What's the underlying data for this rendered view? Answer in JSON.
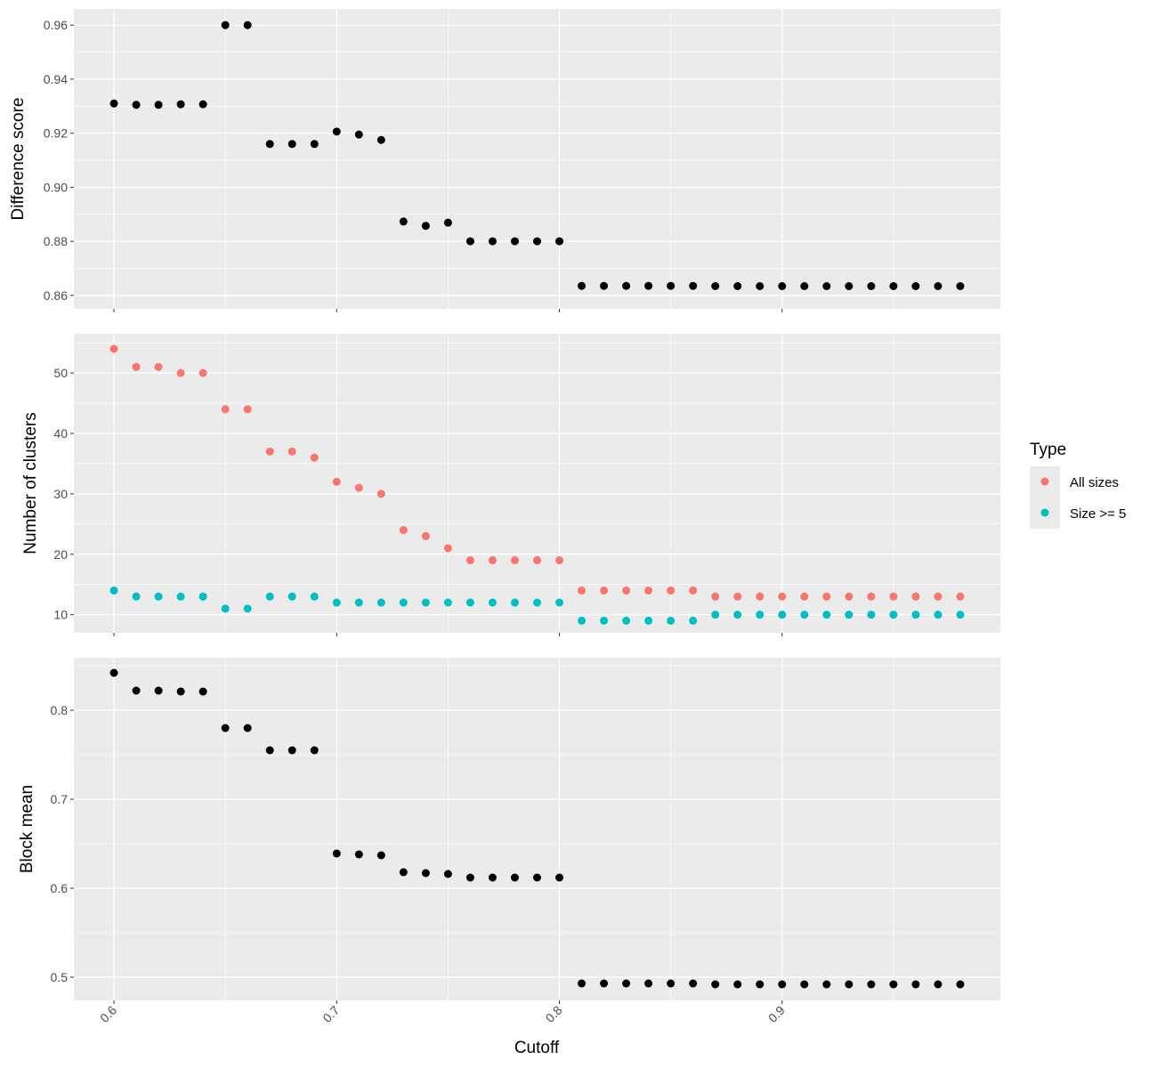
{
  "chart_data": {
    "type": "scatter",
    "xlabel": "Cutoff",
    "xlim": [
      0.582,
      0.998
    ],
    "x_ticks": [
      "0.6",
      "0.7",
      "0.8",
      "0.9"
    ],
    "x_tick_values": [
      0.6,
      0.7,
      0.8,
      0.9
    ],
    "x": [
      0.6,
      0.61,
      0.62,
      0.63,
      0.64,
      0.65,
      0.66,
      0.67,
      0.68,
      0.69,
      0.7,
      0.71,
      0.72,
      0.73,
      0.74,
      0.75,
      0.76,
      0.77,
      0.78,
      0.79,
      0.8,
      0.81,
      0.82,
      0.83,
      0.84,
      0.85,
      0.86,
      0.87,
      0.88,
      0.89,
      0.9,
      0.91,
      0.92,
      0.93,
      0.94,
      0.95,
      0.96,
      0.97,
      0.98
    ],
    "grid": true,
    "panels": [
      {
        "ylabel": "Difference score",
        "ylim": [
          0.855,
          0.966
        ],
        "y_ticks": [
          "0.86",
          "0.88",
          "0.90",
          "0.92",
          "0.94",
          "0.96"
        ],
        "y_tick_values": [
          0.86,
          0.88,
          0.9,
          0.92,
          0.94,
          0.96
        ],
        "series": [
          {
            "color": "#000000",
            "values": [
              0.931,
              0.9305,
              0.9305,
              0.9307,
              0.9307,
              0.96,
              0.96,
              0.916,
              0.916,
              0.916,
              0.9206,
              0.9195,
              0.9175,
              0.8873,
              0.8857,
              0.8869,
              0.88,
              0.88,
              0.88,
              0.88,
              0.88,
              0.8635,
              0.8635,
              0.8635,
              0.8635,
              0.8635,
              0.8635,
              0.8634,
              0.8634,
              0.8634,
              0.8634,
              0.8634,
              0.8634,
              0.8634,
              0.8634,
              0.8634,
              0.8634,
              0.8634,
              0.8634
            ]
          }
        ]
      },
      {
        "ylabel": "Number of clusters",
        "ylim": [
          7.0,
          56.5
        ],
        "y_ticks": [
          "10",
          "20",
          "30",
          "40",
          "50"
        ],
        "y_tick_values": [
          10,
          20,
          30,
          40,
          50
        ],
        "series": [
          {
            "name": "All sizes",
            "color": "#F8766D",
            "values": [
              54,
              51,
              51,
              50,
              50,
              44,
              44,
              37,
              37,
              36,
              32,
              31,
              30,
              24,
              23,
              21,
              19,
              19,
              19,
              19,
              19,
              14,
              14,
              14,
              14,
              14,
              14,
              13,
              13,
              13,
              13,
              13,
              13,
              13,
              13,
              13,
              13,
              13,
              13
            ]
          },
          {
            "name": "Size >= 5",
            "color": "#00BFC4",
            "values": [
              14,
              13,
              13,
              13,
              13,
              11,
              11,
              13,
              13,
              13,
              12,
              12,
              12,
              12,
              12,
              12,
              12,
              12,
              12,
              12,
              12,
              9,
              9,
              9,
              9,
              9,
              9,
              10,
              10,
              10,
              10,
              10,
              10,
              10,
              10,
              10,
              10,
              10,
              10
            ]
          }
        ]
      },
      {
        "ylabel": "Block mean",
        "ylim": [
          0.474,
          0.859
        ],
        "y_ticks": [
          "0.5",
          "0.6",
          "0.7",
          "0.8"
        ],
        "y_tick_values": [
          0.5,
          0.6,
          0.7,
          0.8
        ],
        "series": [
          {
            "color": "#000000",
            "values": [
              0.842,
              0.822,
              0.822,
              0.821,
              0.821,
              0.78,
              0.78,
              0.755,
              0.755,
              0.755,
              0.639,
              0.638,
              0.637,
              0.618,
              0.617,
              0.616,
              0.612,
              0.612,
              0.612,
              0.612,
              0.612,
              0.493,
              0.493,
              0.493,
              0.493,
              0.493,
              0.493,
              0.492,
              0.492,
              0.492,
              0.492,
              0.492,
              0.492,
              0.492,
              0.492,
              0.492,
              0.492,
              0.492,
              0.492
            ]
          }
        ]
      }
    ],
    "legend": {
      "title": "Type",
      "placement": "right",
      "entries": [
        {
          "label": "All sizes",
          "color": "#F8766D"
        },
        {
          "label": "Size >= 5",
          "color": "#00BFC4"
        }
      ]
    }
  }
}
